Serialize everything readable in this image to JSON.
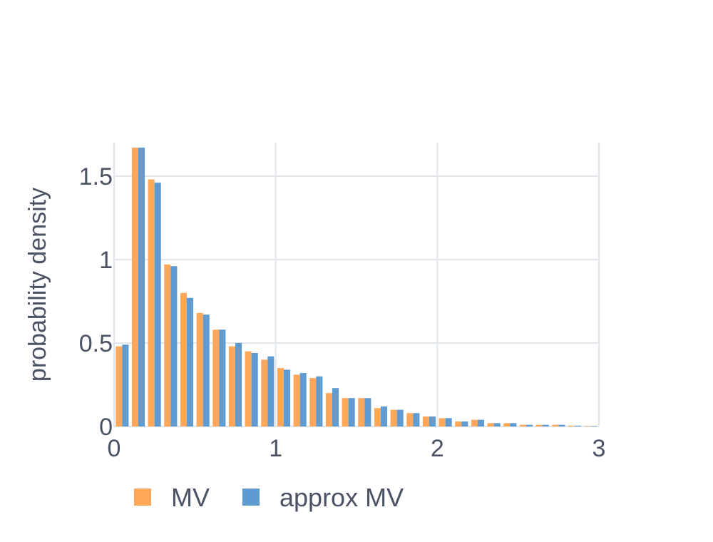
{
  "chart_data": {
    "type": "bar",
    "xlabel": "",
    "ylabel": "probability density",
    "xlim": [
      0,
      3
    ],
    "ylim": [
      0,
      1.7
    ],
    "xticks": [
      "0",
      "1",
      "2",
      "3"
    ],
    "yticks": [
      "0",
      "0.5",
      "1",
      "1.5"
    ],
    "bin_width": 0.1,
    "grid": true,
    "legend_position": "bottom-left",
    "x": [
      0.05,
      0.15,
      0.25,
      0.35,
      0.45,
      0.55,
      0.65,
      0.75,
      0.85,
      0.95,
      1.05,
      1.15,
      1.25,
      1.35,
      1.45,
      1.55,
      1.65,
      1.75,
      1.85,
      1.95,
      2.05,
      2.15,
      2.25,
      2.35,
      2.45,
      2.55,
      2.65,
      2.75,
      2.85,
      2.95
    ],
    "series": [
      {
        "name": "MV",
        "color": "#ffa85a",
        "values": [
          0.48,
          1.67,
          1.48,
          0.97,
          0.8,
          0.68,
          0.58,
          0.48,
          0.45,
          0.4,
          0.35,
          0.31,
          0.29,
          0.2,
          0.17,
          0.17,
          0.11,
          0.1,
          0.08,
          0.06,
          0.05,
          0.03,
          0.04,
          0.02,
          0.02,
          0.01,
          0.01,
          0.01,
          0.005,
          0.003
        ]
      },
      {
        "name": "approx MV",
        "color": "#5f9bd0",
        "values": [
          0.49,
          1.67,
          1.46,
          0.96,
          0.77,
          0.67,
          0.58,
          0.5,
          0.44,
          0.42,
          0.34,
          0.32,
          0.3,
          0.23,
          0.17,
          0.17,
          0.12,
          0.1,
          0.08,
          0.06,
          0.05,
          0.03,
          0.04,
          0.02,
          0.02,
          0.01,
          0.01,
          0.01,
          0.005,
          0.003
        ]
      }
    ]
  }
}
